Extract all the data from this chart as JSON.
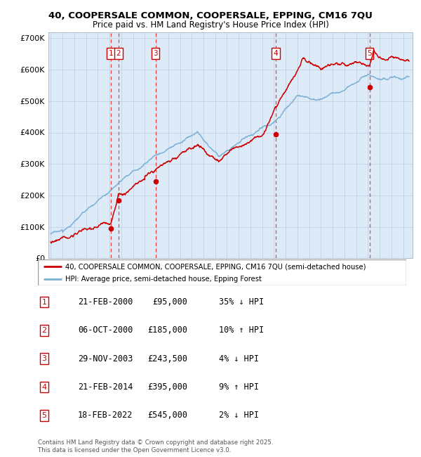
{
  "title_line1": "40, COOPERSALE COMMON, COOPERSALE, EPPING, CM16 7QU",
  "title_line2": "Price paid vs. HM Land Registry's House Price Index (HPI)",
  "legend_line1": "40, COOPERSALE COMMON, COOPERSALE, EPPING, CM16 7QU (semi-detached house)",
  "legend_line2": "HPI: Average price, semi-detached house, Epping Forest",
  "transactions": [
    {
      "num": 1,
      "year": 2000.13,
      "price": 95000
    },
    {
      "num": 2,
      "year": 2000.76,
      "price": 185000
    },
    {
      "num": 3,
      "year": 2003.91,
      "price": 243500
    },
    {
      "num": 4,
      "year": 2014.13,
      "price": 395000
    },
    {
      "num": 5,
      "year": 2022.13,
      "price": 545000
    }
  ],
  "table_rows": [
    {
      "num": 1,
      "date_str": "21-FEB-2000",
      "price_str": "£95,000",
      "pct_str": "35% ↓ HPI"
    },
    {
      "num": 2,
      "date_str": "06-OCT-2000",
      "price_str": "£185,000",
      "pct_str": "10% ↑ HPI"
    },
    {
      "num": 3,
      "date_str": "29-NOV-2003",
      "price_str": "£243,500",
      "pct_str": "4% ↓ HPI"
    },
    {
      "num": 4,
      "date_str": "21-FEB-2014",
      "price_str": "£395,000",
      "pct_str": "9% ↑ HPI"
    },
    {
      "num": 5,
      "date_str": "18-FEB-2022",
      "price_str": "£545,000",
      "pct_str": "2% ↓ HPI"
    }
  ],
  "footer": "Contains HM Land Registry data © Crown copyright and database right 2025.\nThis data is licensed under the Open Government Licence v3.0.",
  "hpi_color": "#7aafd4",
  "price_color": "#cc0000",
  "bg_color": "#ddeaf7",
  "grid_color": "#c0cce0",
  "vline_color": "#ee3333",
  "ylim": [
    0,
    720000
  ],
  "yticks": [
    0,
    100000,
    200000,
    300000,
    400000,
    500000,
    600000,
    700000
  ],
  "ytick_labels": [
    "£0",
    "£100K",
    "£200K",
    "£300K",
    "£400K",
    "£500K",
    "£600K",
    "£700K"
  ],
  "xstart": 1994.8,
  "xend": 2025.8
}
